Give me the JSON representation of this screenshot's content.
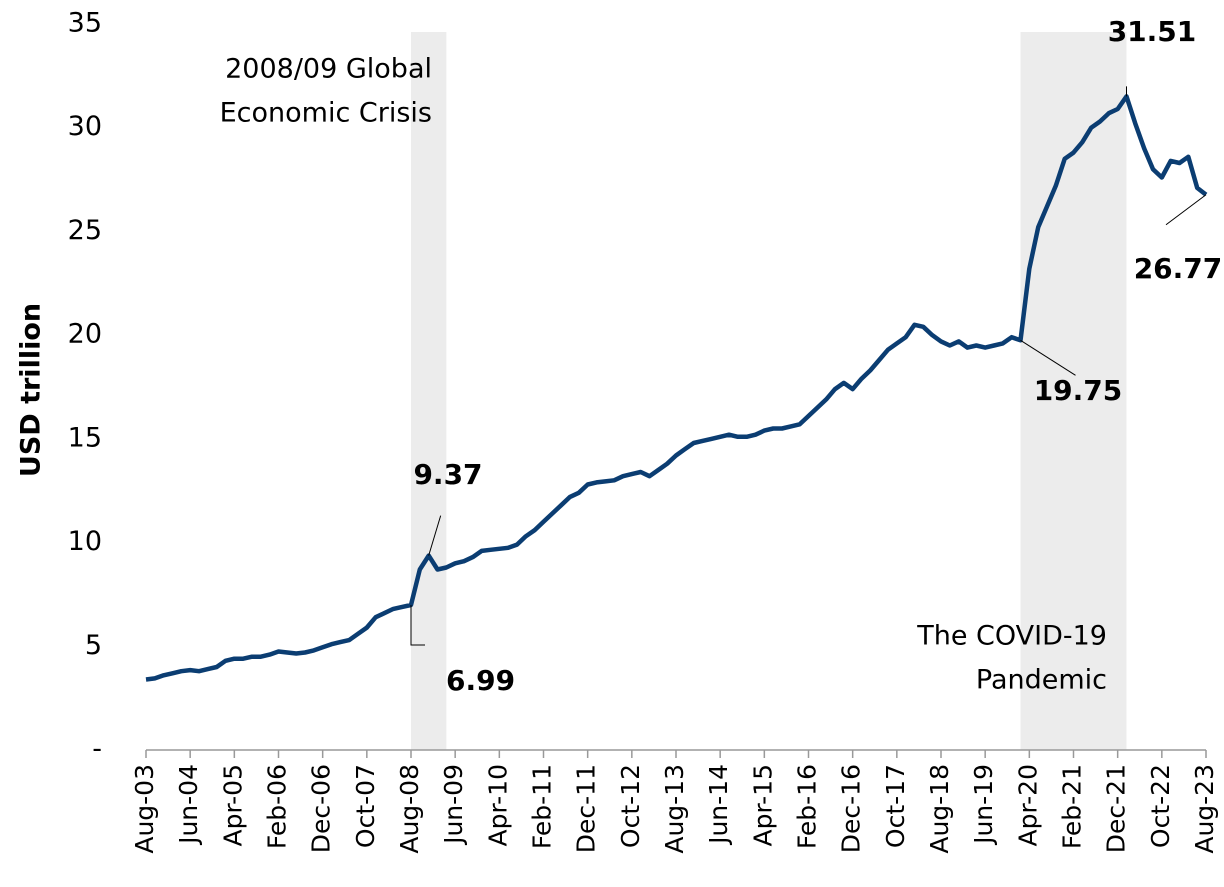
{
  "chart_data": {
    "type": "line",
    "y_axis_label": "USD trillion",
    "categories": [
      "Aug-03",
      null,
      null,
      null,
      null,
      "Jun-04",
      null,
      null,
      null,
      null,
      "Apr-05",
      null,
      null,
      null,
      null,
      "Feb-06",
      null,
      null,
      null,
      null,
      "Dec-06",
      null,
      null,
      null,
      null,
      "Oct-07",
      null,
      null,
      null,
      null,
      "Aug-08",
      null,
      null,
      null,
      null,
      "Jun-09",
      null,
      null,
      null,
      null,
      "Apr-10",
      null,
      null,
      null,
      null,
      "Feb-11",
      null,
      null,
      null,
      null,
      "Dec-11",
      null,
      null,
      null,
      null,
      "Oct-12",
      null,
      null,
      null,
      null,
      "Aug-13",
      null,
      null,
      null,
      null,
      "Jun-14",
      null,
      null,
      null,
      null,
      "Apr-15",
      null,
      null,
      null,
      null,
      "Feb-16",
      null,
      null,
      null,
      null,
      "Dec-16",
      null,
      null,
      null,
      null,
      "Oct-17",
      null,
      null,
      null,
      null,
      "Aug-18",
      null,
      null,
      null,
      null,
      "Jun-19",
      null,
      null,
      null,
      null,
      "Apr-20",
      null,
      null,
      null,
      null,
      "Feb-21",
      null,
      null,
      null,
      null,
      "Dec-21",
      null,
      null,
      null,
      null,
      "Oct-22",
      null,
      null,
      null,
      null,
      "Aug-23"
    ],
    "series": [
      {
        "name": "USD trillion",
        "color": "#0b3d72",
        "values": [
          3.4,
          3.45,
          3.6,
          3.7,
          3.8,
          3.85,
          3.8,
          3.9,
          4.0,
          4.3,
          4.4,
          4.4,
          4.5,
          4.5,
          4.6,
          4.75,
          4.7,
          4.65,
          4.7,
          4.8,
          4.95,
          5.1,
          5.2,
          5.3,
          5.6,
          5.9,
          6.4,
          6.6,
          6.8,
          6.9,
          6.99,
          8.7,
          9.37,
          8.7,
          8.8,
          9.0,
          9.1,
          9.3,
          9.6,
          9.65,
          9.7,
          9.75,
          9.9,
          10.3,
          10.6,
          11.0,
          11.4,
          11.8,
          12.2,
          12.4,
          12.8,
          12.9,
          12.95,
          13.0,
          13.2,
          13.3,
          13.4,
          13.2,
          13.5,
          13.8,
          14.2,
          14.5,
          14.8,
          14.9,
          15.0,
          15.1,
          15.2,
          15.1,
          15.1,
          15.2,
          15.4,
          15.5,
          15.5,
          15.6,
          15.7,
          16.1,
          16.5,
          16.9,
          17.4,
          17.7,
          17.4,
          17.9,
          18.3,
          18.8,
          19.3,
          19.6,
          19.9,
          20.5,
          20.4,
          20.0,
          19.7,
          19.5,
          19.7,
          19.4,
          19.5,
          19.4,
          19.5,
          19.6,
          19.9,
          19.75,
          23.2,
          25.2,
          26.2,
          27.2,
          28.5,
          28.8,
          29.3,
          30.0,
          30.3,
          30.7,
          30.9,
          31.51,
          30.2,
          29.0,
          28.0,
          27.6,
          28.4,
          28.3,
          28.6,
          27.1,
          26.77
        ]
      }
    ],
    "labeled_points": [
      30,
      32,
      99,
      111,
      120
    ],
    "shaded_regions": [
      {
        "start": 30,
        "end": 34,
        "lines": [
          "2008/09 Global",
          "Economic Crisis"
        ]
      },
      {
        "start": 99,
        "end": 111,
        "lines": [
          "The COVID-19",
          "Pandemic"
        ]
      }
    ],
    "shade_color": "#ececec",
    "ylim": [
      0,
      35
    ],
    "yticks": [
      {
        "value": 0,
        "label": "-"
      },
      5,
      10,
      15,
      20,
      25,
      30,
      35
    ]
  }
}
